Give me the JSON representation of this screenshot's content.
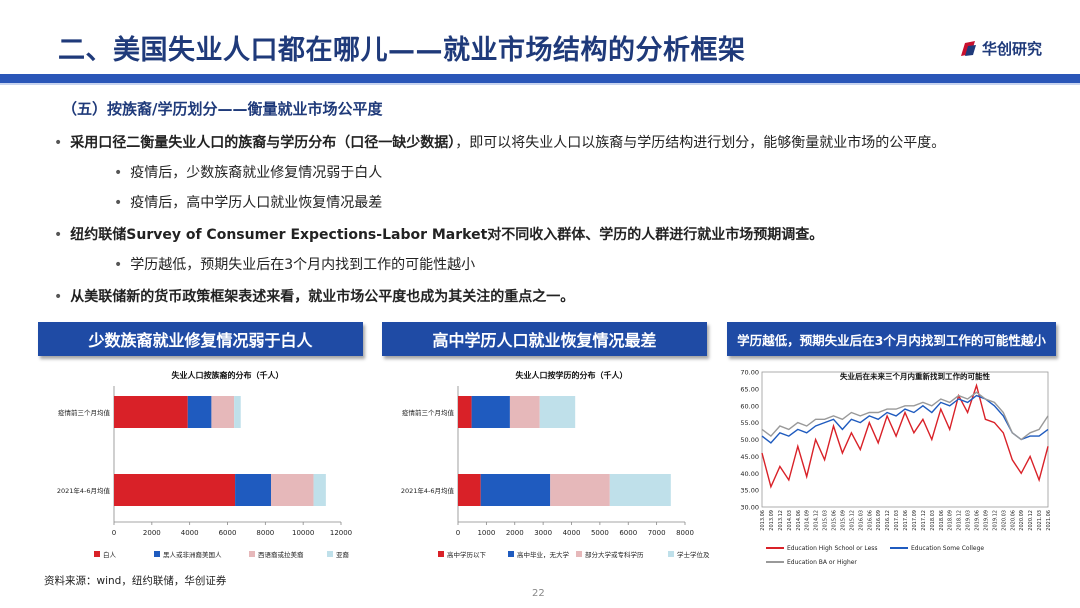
{
  "title": "二、美国失业人口都在哪儿——就业市场结构的分析框架",
  "logo": {
    "text": "华创研究",
    "color": "#1f3a7a"
  },
  "subtitle": "（五）按族裔/学历划分——衡量就业市场公平度",
  "bullets": [
    {
      "pre": "采用口径二衡量失业人口的族裔与学历分布（口径一缺少数据）",
      "post": "，即可以将失业人口以族裔与学历结构进行划分，能够衡量就业市场的公平度。"
    },
    {
      "text": "疫情后，少数族裔就业修复情况弱于白人"
    },
    {
      "text": "疫情后，高中学历人口就业恢复情况最差"
    },
    {
      "text": "纽约联储Survey of Consumer Expections-Labor Market对不同收入群体、学历的人群进行就业市场预期调查。"
    },
    {
      "text": "学历越低，预期失业后在3个月内找到工作的可能性越小"
    },
    {
      "text": "从美联储新的货币政策框架表述来看，就业市场公平度也成为其关注的重点之一。"
    }
  ],
  "banners": [
    "少数族裔就业修复情况弱于白人",
    "高中学历人口就业恢复情况最差",
    "学历越低，预期失业后在3个月内找到工作的可能性越小"
  ],
  "chart_data": [
    {
      "type": "bar",
      "orientation": "horizontal",
      "stacked": true,
      "title": "失业人口按族裔的分布（千人）",
      "categories": [
        "疫情前三个月均值",
        "2021年4-6月均值"
      ],
      "series": [
        {
          "name": "白人",
          "color": "#d92128",
          "values": [
            3900,
            6400
          ]
        },
        {
          "name": "黑人或非洲裔美国人",
          "color": "#1f5bbf",
          "values": [
            1250,
            1900
          ]
        },
        {
          "name": "西语裔或拉美裔",
          "color": "#e6b8ba",
          "values": [
            1200,
            2250
          ]
        },
        {
          "name": "亚裔",
          "color": "#bfe0ea",
          "values": [
            350,
            650
          ]
        }
      ],
      "xlim": [
        0,
        12000
      ],
      "xticks": [
        0,
        2000,
        4000,
        6000,
        8000,
        10000,
        12000
      ],
      "legend": "bottom"
    },
    {
      "type": "bar",
      "orientation": "horizontal",
      "stacked": true,
      "title": "失业人口按学历的分布（千人）",
      "categories": [
        "疫情前三个月均值",
        "2021年4-6月均值"
      ],
      "series": [
        {
          "name": "高中学历以下",
          "color": "#d92128",
          "values": [
            480,
            800
          ]
        },
        {
          "name": "高中毕业，无大学",
          "color": "#1f5bbf",
          "values": [
            1350,
            2450
          ]
        },
        {
          "name": "部分大学或专科学历",
          "color": "#e6b8ba",
          "values": [
            1050,
            2100
          ]
        },
        {
          "name": "学士学位及以上",
          "color": "#bfe0ea",
          "values": [
            1250,
            2150
          ]
        }
      ],
      "xlim": [
        0,
        8000
      ],
      "xticks": [
        0,
        1000,
        2000,
        3000,
        4000,
        5000,
        6000,
        7000,
        8000
      ],
      "legend": "bottom"
    },
    {
      "type": "line",
      "title": "失业后在未来三个月内重新找到工作的可能性",
      "ylim": [
        30,
        70
      ],
      "yticks": [
        "30.00",
        "35.00",
        "40.00",
        "45.00",
        "50.00",
        "55.00",
        "60.00",
        "65.00",
        "70.00"
      ],
      "x": [
        "2013.06",
        "2013.09",
        "2013.12",
        "2014.03",
        "2014.06",
        "2014.09",
        "2014.12",
        "2015.03",
        "2015.06",
        "2015.09",
        "2015.12",
        "2016.03",
        "2016.06",
        "2016.09",
        "2016.12",
        "2017.03",
        "2017.06",
        "2017.09",
        "2017.12",
        "2018.03",
        "2018.06",
        "2018.09",
        "2018.12",
        "2019.03",
        "2019.06",
        "2019.09",
        "2019.12",
        "2020.03",
        "2020.06",
        "2020.09",
        "2020.12",
        "2021.03",
        "2021.06"
      ],
      "series": [
        {
          "name": "Education High School or Less",
          "color": "#d92128",
          "values": [
            46,
            36,
            42,
            38,
            48,
            39,
            50,
            44,
            54,
            46,
            52,
            47,
            55,
            49,
            57,
            51,
            58,
            52,
            56,
            50,
            59,
            53,
            63,
            58,
            66,
            56,
            55,
            52,
            44,
            40,
            45,
            38,
            48
          ]
        },
        {
          "name": "Education Some College",
          "color": "#1f5bbf",
          "values": [
            51,
            49,
            52,
            51,
            53,
            52,
            54,
            55,
            56,
            53,
            56,
            55,
            57,
            56,
            58,
            57,
            59,
            58,
            60,
            58,
            61,
            60,
            62,
            61,
            63,
            62,
            60,
            57,
            52,
            50,
            51,
            51,
            53
          ]
        },
        {
          "name": "Education BA or Higher",
          "color": "#999999",
          "values": [
            53,
            51,
            54,
            53,
            55,
            54,
            56,
            56,
            57,
            56,
            58,
            57,
            58,
            58,
            59,
            59,
            60,
            60,
            61,
            60,
            62,
            61,
            63,
            62,
            64,
            62,
            61,
            58,
            52,
            50,
            52,
            53,
            57
          ]
        }
      ],
      "legend": "bottom"
    }
  ],
  "source": "资料来源：wind，纽约联储，华创证券",
  "page_number": "22"
}
